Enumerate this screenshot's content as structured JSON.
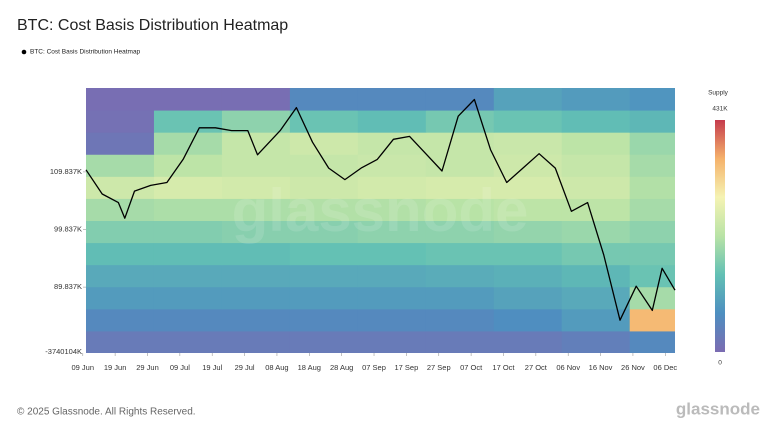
{
  "chart_data": {
    "type": "heatmap_line",
    "title": "BTC: Cost Basis Distribution Heatmap",
    "watermark": "glassnode",
    "footer": "© 2025 Glassnode. All Rights Reserved.",
    "footer_logo": "glassnode",
    "xlim": [
      "10 Jun",
      "09 Dec"
    ],
    "xticks": [
      "09 Jun",
      "19 Jun",
      "29 Jun",
      "09 Jul",
      "19 Jul",
      "29 Jul",
      "08 Aug",
      "18 Aug",
      "28 Aug",
      "07 Sep",
      "17 Sep",
      "27 Sep",
      "07 Oct",
      "17 Oct",
      "27 Oct",
      "06 Nov",
      "16 Nov",
      "26 Nov",
      "06 Dec"
    ],
    "ylim": [
      78400,
      124400
    ],
    "yticks": [
      {
        "value": 89837,
        "label": "89.837K"
      },
      {
        "value": 99837,
        "label": "99.837K"
      },
      {
        "value": 109837,
        "label": "109.837K"
      }
    ],
    "y_min_label": "-3740104K",
    "series": [
      {
        "name": "BTC: Cost Basis Distribution Heatmap",
        "color": "#000000",
        "x": [
          "10 Jun",
          "15 Jun",
          "20 Jun",
          "22 Jun",
          "25 Jun",
          "30 Jun",
          "05 Jul",
          "10 Jul",
          "15 Jul",
          "20 Jul",
          "25 Jul",
          "30 Jul",
          "02 Aug",
          "09 Aug",
          "14 Aug",
          "19 Aug",
          "24 Aug",
          "29 Aug",
          "03 Sep",
          "08 Sep",
          "13 Sep",
          "18 Sep",
          "23 Sep",
          "28 Sep",
          "03 Oct",
          "08 Oct",
          "13 Oct",
          "18 Oct",
          "23 Oct",
          "28 Oct",
          "02 Nov",
          "07 Nov",
          "12 Nov",
          "17 Nov",
          "22 Nov",
          "27 Nov",
          "02 Dec",
          "05 Dec",
          "09 Dec"
        ],
        "values": [
          110200,
          106000,
          104500,
          101800,
          106500,
          107500,
          108000,
          112000,
          117500,
          117500,
          117000,
          117000,
          112800,
          117000,
          121000,
          115000,
          110500,
          108500,
          110500,
          112000,
          115500,
          116000,
          113000,
          110000,
          119500,
          122400,
          113700,
          108000,
          110500,
          113000,
          110500,
          103000,
          104500,
          95400,
          84100,
          90000,
          85800,
          93100,
          89300
        ]
      }
    ],
    "heatmap": {
      "x_edges": [
        "10 Jun",
        "01 Jul",
        "22 Jul",
        "12 Aug",
        "02 Sep",
        "23 Sep",
        "14 Oct",
        "04 Nov",
        "25 Nov",
        "09 Dec"
      ],
      "y_edges": [
        78400,
        82233,
        86067,
        89900,
        93733,
        97567,
        101400,
        105233,
        109067,
        112900,
        116733,
        120567,
        124400
      ],
      "values": [
        [
          30000,
          30000,
          30000,
          30000,
          30000,
          30000,
          30000,
          40000,
          60000
        ],
        [
          60000,
          60000,
          60000,
          60000,
          60000,
          60000,
          70000,
          90000,
          350000
        ],
        [
          90000,
          90000,
          90000,
          90000,
          90000,
          90000,
          100000,
          110000,
          200000
        ],
        [
          110000,
          110000,
          110000,
          110000,
          110000,
          115000,
          120000,
          130000,
          150000
        ],
        [
          140000,
          140000,
          140000,
          145000,
          145000,
          150000,
          150000,
          160000,
          160000
        ],
        [
          170000,
          170000,
          175000,
          175000,
          180000,
          180000,
          185000,
          190000,
          180000
        ],
        [
          200000,
          205000,
          205000,
          210000,
          210000,
          215000,
          220000,
          220000,
          200000
        ],
        [
          240000,
          250000,
          245000,
          240000,
          245000,
          250000,
          250000,
          240000,
          210000
        ],
        [
          200000,
          220000,
          230000,
          230000,
          235000,
          230000,
          240000,
          230000,
          200000
        ],
        [
          20000,
          200000,
          230000,
          240000,
          230000,
          230000,
          235000,
          220000,
          190000
        ],
        [
          10000,
          150000,
          180000,
          150000,
          140000,
          160000,
          150000,
          140000,
          130000
        ],
        [
          5000,
          5000,
          5000,
          60000,
          60000,
          60000,
          100000,
          90000,
          80000
        ]
      ]
    },
    "colorbar": {
      "title": "Supply",
      "ticks": [
        0,
        {
          "value": 431000,
          "label": "431K"
        }
      ],
      "colorscale": [
        "#7b6cb2",
        "#4e8fc0",
        "#62c0b4",
        "#b9e3a6",
        "#f5f3b3",
        "#f5b26b",
        "#c53c4d"
      ]
    }
  }
}
